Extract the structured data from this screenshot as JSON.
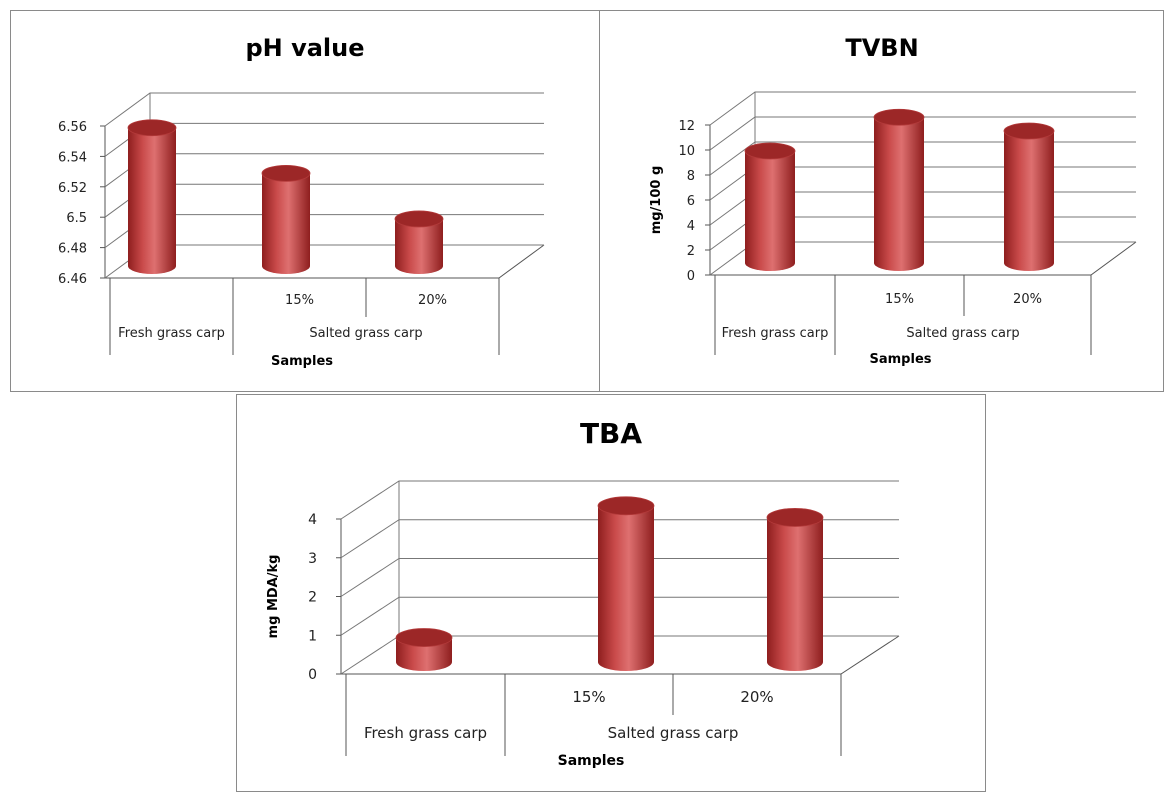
{
  "colors": {
    "bar_side_dark": "#8e1e1e",
    "bar_side_mid": "#c94a4a",
    "bar_side_light": "#de7070",
    "bar_top": "#9c2727",
    "grid": "#777777",
    "axis": "#555555"
  },
  "chart_data": [
    {
      "type": "bar",
      "style": "3d-cylinder",
      "title": "pH value",
      "xlabel": "Samples",
      "ylabel": "",
      "ylim": [
        6.46,
        6.56
      ],
      "yticks": [
        "6.46",
        "6.48",
        "6.5",
        "6.52",
        "6.54",
        "6.56"
      ],
      "group_labels": [
        "Fresh grass carp",
        "Salted grass carp"
      ],
      "categories": [
        "",
        "15%",
        "20%"
      ],
      "values": [
        6.548,
        6.518,
        6.488
      ],
      "grid": true,
      "legend": "none"
    },
    {
      "type": "bar",
      "style": "3d-cylinder",
      "title": "TVBN",
      "xlabel": "Samples",
      "ylabel": "mg/100 g",
      "ylim": [
        0,
        12
      ],
      "yticks": [
        "0",
        "2",
        "4",
        "6",
        "8",
        "10",
        "12"
      ],
      "group_labels": [
        "Fresh grass carp",
        "Salted grass carp"
      ],
      "categories": [
        "",
        "15%",
        "20%"
      ],
      "values": [
        8.6,
        11.3,
        10.2
      ],
      "grid": true,
      "legend": "none"
    },
    {
      "type": "bar",
      "style": "3d-cylinder",
      "title": "TBA",
      "xlabel": "Samples",
      "ylabel": "mg MDA/kg",
      "ylim": [
        0,
        4
      ],
      "yticks": [
        "0",
        "1",
        "2",
        "3",
        "4"
      ],
      "group_labels": [
        "Fresh grass carp",
        "Salted grass carp"
      ],
      "categories": [
        "",
        "15%",
        "20%"
      ],
      "values": [
        0.45,
        3.85,
        3.55
      ],
      "grid": true,
      "legend": "none"
    }
  ]
}
